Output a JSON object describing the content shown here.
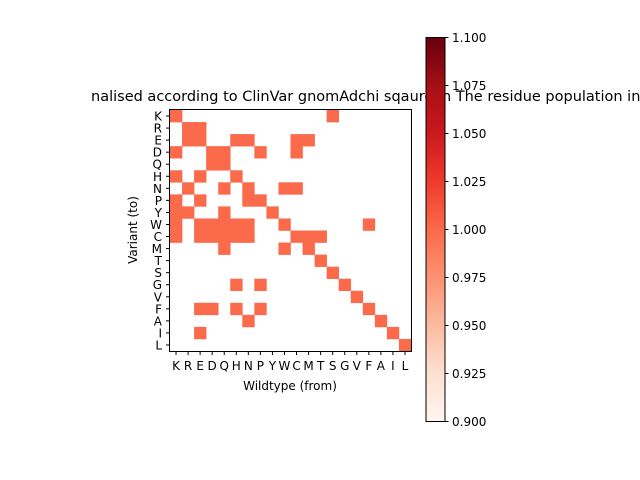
{
  "chart_data": {
    "type": "heatmap",
    "title": "nalised according to ClinVar gnomAdchi sqaure in The residue population in c",
    "xlabel": "Wildtype (from)",
    "ylabel": "Variant (to)",
    "x_categories": [
      "K",
      "R",
      "E",
      "D",
      "Q",
      "H",
      "N",
      "P",
      "Y",
      "W",
      "C",
      "M",
      "T",
      "S",
      "G",
      "V",
      "F",
      "A",
      "I",
      "L"
    ],
    "y_categories": [
      "K",
      "R",
      "E",
      "D",
      "Q",
      "H",
      "N",
      "P",
      "Y",
      "W",
      "C",
      "M",
      "T",
      "S",
      "G",
      "V",
      "F",
      "A",
      "I",
      "L"
    ],
    "cell_value": 1.0,
    "cells": [
      [
        "K",
        "K"
      ],
      [
        "S",
        "K"
      ],
      [
        "R",
        "R"
      ],
      [
        "E",
        "R"
      ],
      [
        "R",
        "E"
      ],
      [
        "E",
        "E"
      ],
      [
        "H",
        "E"
      ],
      [
        "N",
        "E"
      ],
      [
        "C",
        "E"
      ],
      [
        "M",
        "E"
      ],
      [
        "K",
        "D"
      ],
      [
        "D",
        "D"
      ],
      [
        "Q",
        "D"
      ],
      [
        "P",
        "D"
      ],
      [
        "C",
        "D"
      ],
      [
        "D",
        "Q"
      ],
      [
        "Q",
        "Q"
      ],
      [
        "K",
        "H"
      ],
      [
        "E",
        "H"
      ],
      [
        "H",
        "H"
      ],
      [
        "R",
        "N"
      ],
      [
        "Q",
        "N"
      ],
      [
        "N",
        "N"
      ],
      [
        "W",
        "N"
      ],
      [
        "C",
        "N"
      ],
      [
        "K",
        "P"
      ],
      [
        "E",
        "P"
      ],
      [
        "N",
        "P"
      ],
      [
        "P",
        "P"
      ],
      [
        "K",
        "Y"
      ],
      [
        "R",
        "Y"
      ],
      [
        "Q",
        "Y"
      ],
      [
        "Y",
        "Y"
      ],
      [
        "K",
        "W"
      ],
      [
        "E",
        "W"
      ],
      [
        "D",
        "W"
      ],
      [
        "Q",
        "W"
      ],
      [
        "H",
        "W"
      ],
      [
        "N",
        "W"
      ],
      [
        "W",
        "W"
      ],
      [
        "F",
        "W"
      ],
      [
        "K",
        "C"
      ],
      [
        "E",
        "C"
      ],
      [
        "D",
        "C"
      ],
      [
        "Q",
        "C"
      ],
      [
        "H",
        "C"
      ],
      [
        "N",
        "C"
      ],
      [
        "C",
        "C"
      ],
      [
        "M",
        "C"
      ],
      [
        "T",
        "C"
      ],
      [
        "Q",
        "M"
      ],
      [
        "W",
        "M"
      ],
      [
        "M",
        "M"
      ],
      [
        "T",
        "T"
      ],
      [
        "S",
        "S"
      ],
      [
        "H",
        "G"
      ],
      [
        "P",
        "G"
      ],
      [
        "G",
        "G"
      ],
      [
        "V",
        "V"
      ],
      [
        "E",
        "F"
      ],
      [
        "D",
        "F"
      ],
      [
        "H",
        "F"
      ],
      [
        "P",
        "F"
      ],
      [
        "F",
        "F"
      ],
      [
        "N",
        "A"
      ],
      [
        "A",
        "A"
      ],
      [
        "E",
        "I"
      ],
      [
        "I",
        "I"
      ],
      [
        "L",
        "L"
      ]
    ],
    "colorbar": {
      "vmin": 0.9,
      "vmax": 1.1,
      "ticks": [
        "0.900",
        "0.925",
        "0.950",
        "0.975",
        "1.000",
        "1.025",
        "1.050",
        "1.075",
        "1.100"
      ],
      "colormap": "Reds"
    },
    "cell_color": "#fb6a4a",
    "grid": false
  }
}
